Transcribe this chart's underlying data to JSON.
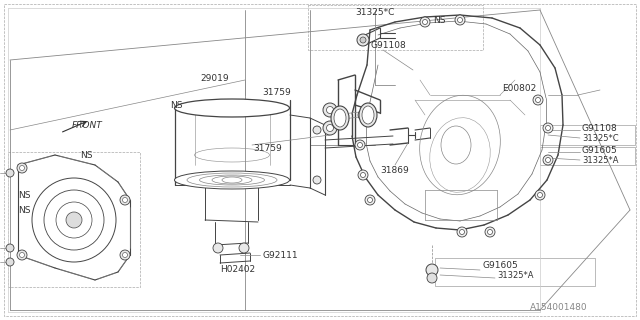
{
  "bg_color": "#ffffff",
  "line_color": "#444444",
  "text_color": "#333333",
  "gray_color": "#888888",
  "labels": {
    "31325C_top": "31325*C",
    "G91108_top": "G91108",
    "NS_top": "NS",
    "31759_top": "31759",
    "31759_mid": "31759",
    "29019": "29019",
    "front": "FRONT",
    "NS1": "NS",
    "NS2": "NS",
    "NS3": "NS",
    "NS4": "NS",
    "E00802": "E00802",
    "G91108_right": "G91108",
    "31325C_right": "31325*C",
    "G91605_upper": "G91605",
    "31325A_upper": "31325*A",
    "31869": "31869",
    "G92111": "G92111",
    "H02402": "H02402",
    "G91605_lower": "G91605",
    "31325A_lower": "31325*A",
    "diagram_id": "A154001480"
  },
  "isometric_slope": 0.25
}
